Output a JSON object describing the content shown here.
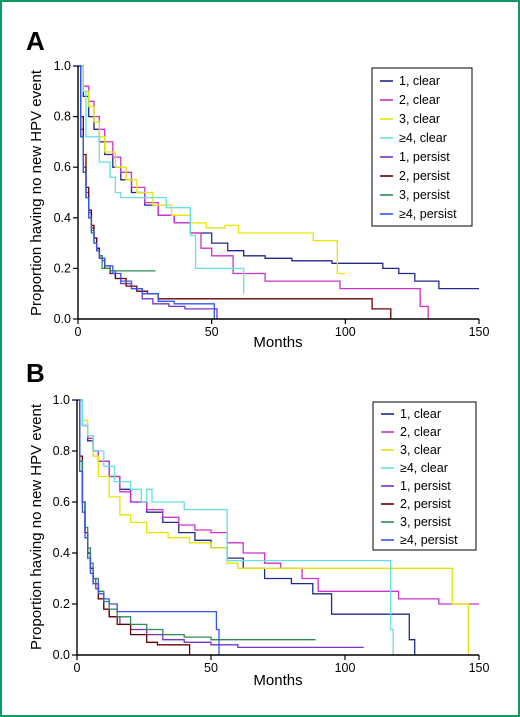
{
  "chart_data": [
    {
      "type": "line",
      "panel_label": "A",
      "xlabel": "Months",
      "ylabel": "Proportion having no new HPV event",
      "xlim": [
        0,
        150
      ],
      "ylim": [
        0,
        1.0
      ],
      "x_ticks": [
        "0",
        "50",
        "100",
        "150"
      ],
      "y_ticks": [
        "0.0",
        "0.2",
        "0.4",
        "0.6",
        "0.8",
        "1.0"
      ],
      "legend_position": "top-right",
      "series": [
        {
          "name": "1, clear",
          "color": "#1f2a8c",
          "x": [
            0,
            2,
            4,
            6,
            8,
            10,
            13,
            16,
            20,
            25,
            30,
            36,
            42,
            50,
            56,
            62,
            70,
            80,
            88,
            95,
            102,
            108,
            114,
            120,
            126,
            135,
            150
          ],
          "y": [
            1.0,
            0.88,
            0.8,
            0.75,
            0.7,
            0.65,
            0.6,
            0.55,
            0.5,
            0.45,
            0.41,
            0.38,
            0.34,
            0.3,
            0.27,
            0.25,
            0.24,
            0.23,
            0.23,
            0.22,
            0.22,
            0.22,
            0.2,
            0.18,
            0.15,
            0.12,
            0.12
          ]
        },
        {
          "name": "2, clear",
          "color": "#cc33cc",
          "x": [
            0,
            2,
            4,
            6,
            8,
            10,
            13,
            16,
            20,
            25,
            30,
            36,
            42,
            46,
            50,
            58,
            70,
            88,
            98,
            112,
            124,
            128,
            131
          ],
          "y": [
            1.0,
            0.92,
            0.86,
            0.8,
            0.75,
            0.7,
            0.64,
            0.58,
            0.52,
            0.46,
            0.41,
            0.38,
            0.34,
            0.28,
            0.25,
            0.18,
            0.15,
            0.15,
            0.12,
            0.12,
            0.12,
            0.05,
            0.0
          ]
        },
        {
          "name": "3, clear",
          "color": "#e6e600",
          "x": [
            0,
            2,
            4,
            6,
            8,
            10,
            14,
            18,
            22,
            28,
            35,
            42,
            48,
            55,
            60,
            70,
            80,
            88,
            97,
            100
          ],
          "y": [
            1.0,
            0.9,
            0.84,
            0.78,
            0.72,
            0.66,
            0.6,
            0.55,
            0.5,
            0.45,
            0.41,
            0.38,
            0.36,
            0.37,
            0.34,
            0.34,
            0.34,
            0.31,
            0.18,
            0.18
          ]
        },
        {
          "name": "≥4, clear",
          "color": "#66e0e0",
          "x": [
            0,
            2,
            3,
            6,
            8,
            10,
            12,
            14,
            16,
            20,
            26,
            33,
            38,
            42,
            44,
            50,
            60,
            62
          ],
          "y": [
            1.0,
            0.9,
            0.72,
            0.72,
            0.62,
            0.62,
            0.56,
            0.5,
            0.48,
            0.48,
            0.48,
            0.44,
            0.44,
            0.33,
            0.2,
            0.2,
            0.2,
            0.1
          ]
        },
        {
          "name": "1, persist",
          "color": "#7733cc",
          "x": [
            0,
            1,
            2,
            3,
            4,
            5,
            6,
            7,
            8,
            9,
            10,
            12,
            14,
            16,
            20,
            24,
            28,
            34,
            40,
            47,
            52
          ],
          "y": [
            1.0,
            0.75,
            0.6,
            0.5,
            0.42,
            0.36,
            0.32,
            0.28,
            0.25,
            0.23,
            0.21,
            0.19,
            0.16,
            0.14,
            0.12,
            0.08,
            0.06,
            0.05,
            0.04,
            0.04,
            0.0
          ]
        },
        {
          "name": "2, persist",
          "color": "#6b0000",
          "x": [
            0,
            1,
            2,
            3,
            4,
            5,
            6,
            7,
            8,
            10,
            12,
            14,
            18,
            22,
            26,
            30,
            36,
            42,
            50,
            60,
            80,
            95,
            100,
            110,
            117
          ],
          "y": [
            1.0,
            0.8,
            0.65,
            0.52,
            0.43,
            0.37,
            0.32,
            0.28,
            0.24,
            0.2,
            0.18,
            0.16,
            0.13,
            0.11,
            0.1,
            0.08,
            0.08,
            0.08,
            0.08,
            0.08,
            0.08,
            0.08,
            0.08,
            0.04,
            0.0
          ]
        },
        {
          "name": "3, persist",
          "color": "#2e8b57",
          "x": [
            0,
            1,
            2,
            3,
            4,
            5,
            6,
            7,
            8,
            9,
            12,
            14,
            18,
            22,
            26,
            29
          ],
          "y": [
            1.0,
            0.72,
            0.58,
            0.48,
            0.4,
            0.35,
            0.3,
            0.27,
            0.25,
            0.2,
            0.19,
            0.19,
            0.19,
            0.19,
            0.19,
            0.19
          ]
        },
        {
          "name": "≥4, persist",
          "color": "#3355ee",
          "x": [
            0,
            1,
            2,
            3,
            4,
            5,
            6,
            7,
            8,
            10,
            13,
            16,
            20,
            24,
            30,
            36,
            42,
            47,
            50,
            51
          ],
          "y": [
            1.0,
            0.72,
            0.58,
            0.48,
            0.4,
            0.34,
            0.3,
            0.27,
            0.24,
            0.21,
            0.18,
            0.15,
            0.12,
            0.1,
            0.07,
            0.06,
            0.06,
            0.06,
            0.06,
            0.0
          ]
        }
      ]
    },
    {
      "type": "line",
      "panel_label": "B",
      "xlabel": "Months",
      "ylabel": "Proportion having no new HPV event",
      "xlim": [
        0,
        150
      ],
      "ylim": [
        0,
        1.0
      ],
      "x_ticks": [
        "0",
        "50",
        "100",
        "150"
      ],
      "y_ticks": [
        "0.0",
        "0.2",
        "0.4",
        "0.6",
        "0.8",
        "1.0"
      ],
      "legend_position": "top-right",
      "series": [
        {
          "name": "1, clear",
          "color": "#1f2a8c",
          "x": [
            0,
            2,
            4,
            6,
            8,
            12,
            16,
            20,
            26,
            32,
            38,
            44,
            50,
            56,
            62,
            70,
            80,
            88,
            95,
            100,
            110,
            120,
            124,
            126
          ],
          "y": [
            1.0,
            0.9,
            0.84,
            0.8,
            0.76,
            0.7,
            0.65,
            0.6,
            0.56,
            0.52,
            0.48,
            0.45,
            0.42,
            0.38,
            0.34,
            0.3,
            0.28,
            0.24,
            0.16,
            0.16,
            0.16,
            0.16,
            0.06,
            0.0
          ]
        },
        {
          "name": "2, clear",
          "color": "#cc33cc",
          "x": [
            0,
            2,
            4,
            6,
            8,
            12,
            16,
            20,
            26,
            32,
            38,
            44,
            50,
            56,
            62,
            70,
            76,
            84,
            90,
            100,
            110,
            120,
            135,
            150
          ],
          "y": [
            1.0,
            0.9,
            0.85,
            0.8,
            0.76,
            0.7,
            0.64,
            0.6,
            0.57,
            0.54,
            0.51,
            0.49,
            0.48,
            0.44,
            0.4,
            0.36,
            0.34,
            0.3,
            0.25,
            0.25,
            0.25,
            0.22,
            0.2,
            0.2
          ]
        },
        {
          "name": "3, clear",
          "color": "#e6e600",
          "x": [
            0,
            2,
            4,
            6,
            8,
            12,
            16,
            20,
            26,
            34,
            42,
            50,
            56,
            60,
            70,
            80,
            95,
            110,
            125,
            138,
            140,
            146
          ],
          "y": [
            1.0,
            0.92,
            0.86,
            0.78,
            0.7,
            0.62,
            0.55,
            0.52,
            0.48,
            0.46,
            0.44,
            0.42,
            0.36,
            0.34,
            0.34,
            0.34,
            0.34,
            0.34,
            0.34,
            0.34,
            0.2,
            0.0
          ]
        },
        {
          "name": "≥4, clear",
          "color": "#66e0e0",
          "x": [
            0,
            2,
            4,
            6,
            10,
            14,
            20,
            24,
            26,
            28,
            34,
            40,
            48,
            55,
            56,
            62,
            80,
            100,
            115,
            117,
            118
          ],
          "y": [
            1.0,
            0.9,
            0.86,
            0.8,
            0.74,
            0.68,
            0.65,
            0.6,
            0.65,
            0.6,
            0.6,
            0.57,
            0.57,
            0.57,
            0.37,
            0.37,
            0.37,
            0.37,
            0.37,
            0.1,
            0.0
          ]
        },
        {
          "name": "1, persist",
          "color": "#7733cc",
          "x": [
            0,
            1,
            2,
            3,
            4,
            5,
            6,
            7,
            8,
            10,
            12,
            16,
            20,
            26,
            32,
            40,
            50,
            60,
            80,
            100,
            107
          ],
          "y": [
            1.0,
            0.76,
            0.6,
            0.48,
            0.4,
            0.34,
            0.3,
            0.26,
            0.22,
            0.18,
            0.15,
            0.12,
            0.1,
            0.08,
            0.06,
            0.05,
            0.04,
            0.03,
            0.03,
            0.03,
            0.03
          ]
        },
        {
          "name": "2, persist",
          "color": "#6b0000",
          "x": [
            0,
            1,
            2,
            3,
            4,
            5,
            6,
            8,
            10,
            12,
            15,
            20,
            26,
            30,
            36,
            40,
            42
          ],
          "y": [
            1.0,
            0.78,
            0.6,
            0.48,
            0.4,
            0.34,
            0.28,
            0.22,
            0.18,
            0.15,
            0.12,
            0.08,
            0.05,
            0.04,
            0.04,
            0.04,
            0.0
          ]
        },
        {
          "name": "3, persist",
          "color": "#2e8b57",
          "x": [
            0,
            1,
            2,
            3,
            4,
            5,
            6,
            8,
            10,
            12,
            15,
            20,
            26,
            32,
            40,
            50,
            60,
            70,
            80,
            89
          ],
          "y": [
            1.0,
            0.76,
            0.6,
            0.5,
            0.42,
            0.36,
            0.3,
            0.25,
            0.21,
            0.18,
            0.15,
            0.12,
            0.1,
            0.08,
            0.07,
            0.06,
            0.06,
            0.06,
            0.06,
            0.06
          ]
        },
        {
          "name": "≥4, persist",
          "color": "#3355ee",
          "x": [
            0,
            1,
            2,
            3,
            4,
            5,
            6,
            8,
            10,
            12,
            15,
            20,
            24,
            30,
            40,
            50,
            52,
            53
          ],
          "y": [
            1.0,
            0.72,
            0.56,
            0.46,
            0.38,
            0.32,
            0.28,
            0.24,
            0.22,
            0.2,
            0.17,
            0.17,
            0.17,
            0.17,
            0.17,
            0.17,
            0.1,
            0.0
          ]
        }
      ]
    }
  ]
}
